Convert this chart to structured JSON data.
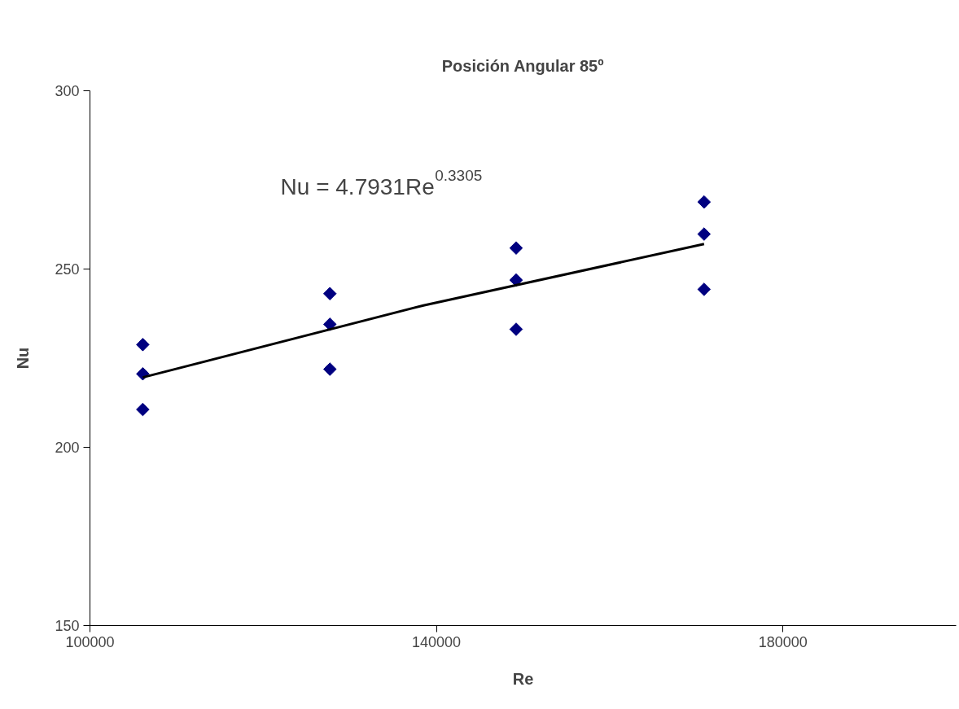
{
  "chart_data": {
    "type": "scatter",
    "title": "Posición Angular 85º",
    "xlabel": "Re",
    "ylabel": "Nu",
    "xlim": [
      100000,
      200000
    ],
    "xticks": [
      100000,
      140000,
      180000
    ],
    "ylim": [
      150,
      300
    ],
    "yticks": [
      150,
      200,
      250,
      300
    ],
    "grid": false,
    "marker": "diamond",
    "annotations": [
      "Nu = 4.7931Re$^{0.3305}$"
    ],
    "series": [
      {
        "color": "#000080",
        "x": [
          106100,
          106100,
          106100,
          127700,
          127700,
          127700,
          149200,
          149200,
          149200,
          170900,
          170900,
          170900
        ],
        "values": [
          228.8,
          220.6,
          210.6,
          243.1,
          234.5,
          221.9,
          255.9,
          246.9,
          233.1,
          268.8,
          259.8,
          244.3
        ]
      },
      {
        "type": "line",
        "color": "#000000",
        "marker": "none",
        "line_style": "solid",
        "x": [
          106100,
          138500,
          170900
        ],
        "values": [
          219.6,
          239.8,
          257.0
        ]
      }
    ]
  }
}
